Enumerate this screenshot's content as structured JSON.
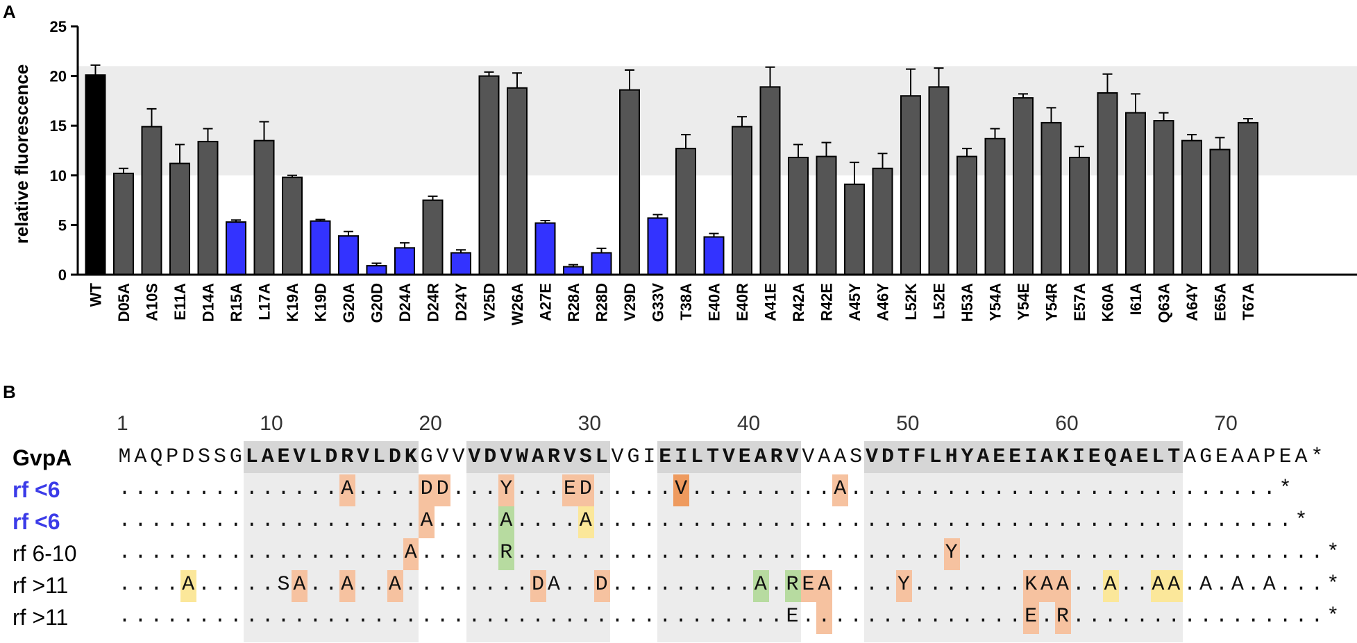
{
  "panels": {
    "a": "A",
    "b": "B"
  },
  "chart_data": {
    "type": "bar",
    "ylabel": "relative fluorescence",
    "ylim": [
      0,
      25
    ],
    "yticks": [
      0,
      5,
      10,
      15,
      20,
      25
    ],
    "reference_band": [
      10,
      21
    ],
    "categories": [
      "WT",
      "D05A",
      "A10S",
      "E11A",
      "D14A",
      "R15A",
      "L17A",
      "K19A",
      "K19D",
      "G20A",
      "G20D",
      "D24A",
      "D24R",
      "D24Y",
      "V25D",
      "W26A",
      "A27E",
      "R28A",
      "R28D",
      "V29D",
      "G33V",
      "T38A",
      "E40A",
      "E40R",
      "A41E",
      "R42A",
      "R42E",
      "A45Y",
      "A46Y",
      "L52K",
      "L52E",
      "H53A",
      "Y54A",
      "Y54E",
      "Y54R",
      "E57A",
      "K60A",
      "I61A",
      "Q63A",
      "A64Y",
      "E65A",
      "T67A"
    ],
    "values": [
      20.1,
      10.2,
      14.9,
      11.2,
      13.4,
      5.3,
      13.5,
      9.8,
      5.4,
      3.9,
      0.9,
      2.7,
      7.5,
      2.2,
      20.0,
      18.8,
      5.2,
      0.8,
      2.2,
      18.6,
      5.7,
      12.7,
      3.8,
      14.9,
      18.9,
      11.8,
      11.9,
      9.1,
      10.7,
      18.0,
      18.9,
      11.9,
      13.7,
      17.8,
      15.3,
      11.8,
      18.3,
      16.3,
      15.5,
      13.5,
      12.6,
      15.3
    ],
    "errors": [
      1.0,
      0.5,
      1.8,
      1.9,
      1.3,
      0.2,
      1.9,
      0.2,
      0.15,
      0.45,
      0.25,
      0.5,
      0.4,
      0.3,
      0.4,
      1.5,
      0.25,
      0.2,
      0.45,
      2.0,
      0.35,
      1.4,
      0.35,
      1.0,
      2.0,
      1.3,
      1.4,
      2.2,
      1.5,
      2.7,
      1.9,
      0.8,
      1.0,
      0.4,
      1.5,
      1.1,
      1.9,
      1.9,
      0.8,
      0.6,
      1.2,
      0.4
    ],
    "bar_colors": [
      "#000000",
      "#555555",
      "#555555",
      "#555555",
      "#555555",
      "#3333ff",
      "#555555",
      "#555555",
      "#3333ff",
      "#3333ff",
      "#3333ff",
      "#3333ff",
      "#555555",
      "#3333ff",
      "#555555",
      "#555555",
      "#3333ff",
      "#3333ff",
      "#3333ff",
      "#555555",
      "#3333ff",
      "#555555",
      "#3333ff",
      "#555555",
      "#555555",
      "#555555",
      "#555555",
      "#555555",
      "#555555",
      "#555555",
      "#555555",
      "#555555",
      "#555555",
      "#555555",
      "#555555",
      "#555555",
      "#555555",
      "#555555",
      "#555555",
      "#555555",
      "#555555",
      "#555555"
    ]
  },
  "alignment": {
    "numbers": [
      "1",
      "10",
      "20",
      "30",
      "40",
      "50",
      "60",
      "70"
    ],
    "gvpa_label": "GvpA",
    "gvpa_sequence": "MAQPDSSGLAEVLDRVLDKGVVVDVWARVSLVGIEILTVEARVVAASVDTFLHYAEEIAKIEQAELTAGEAAPEA*",
    "rows": [
      {
        "label": "rf <6",
        "color": "#3b3be8",
        "bold": true,
        "text": "..............A....DD...Y...ED.....V.........A...........................*"
      },
      {
        "label": "rf <6",
        "color": "#3b3be8",
        "bold": true,
        "text": "...................A....A....A............................................*"
      },
      {
        "label": "rf 6-10",
        "color": "#000000",
        "bold": false,
        "text": "..................A.....R...........................Y.......................*"
      },
      {
        "label": "rf >11",
        "color": "#000000",
        "bold": false,
        "text": "....A.....SA..A..A........DA..D.........A.REA....Y.......KAA..A..AA.A.A.A...*"
      },
      {
        "label": "rf >11",
        "color": "#000000",
        "bold": false,
        "text": "..........................................E..............E.R................*"
      }
    ]
  },
  "colors": {
    "orange": "#f6c2a0",
    "dark_orange": "#ee9a5e",
    "green": "#b7dba0",
    "yellow": "#fbe79a",
    "grey_band": "#ececec"
  }
}
